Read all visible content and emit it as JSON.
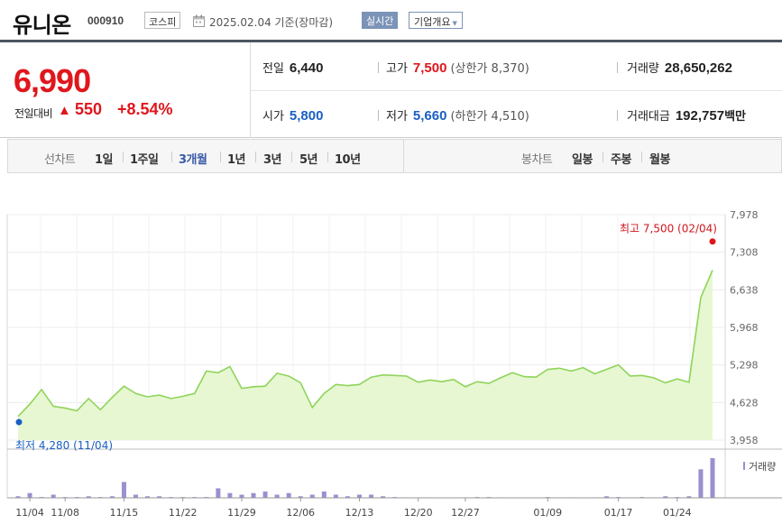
{
  "header": {
    "name": "유니온",
    "code": "000910",
    "market": "코스피",
    "date": "2025.02.04 기준(장마감)",
    "realtime_label": "실시간",
    "company_label": "기업개요"
  },
  "price": {
    "current": "6,990",
    "vs_label": "전일대비",
    "change": "550",
    "rate": "+8.54%",
    "up_color": "#e0161d",
    "down_color": "#1a5fc2"
  },
  "stats": {
    "prev_label": "전일",
    "prev_value": "6,440",
    "high_label": "고가",
    "high_value": "7,500",
    "upper_limit": "(상한가 8,370)",
    "volume_label": "거래량",
    "volume_value": "28,650,262",
    "open_label": "시가",
    "open_value": "5,800",
    "low_label": "저가",
    "low_value": "5,660",
    "lower_limit": "(하한가 4,510)",
    "amount_label": "거래대금",
    "amount_value": "192,757",
    "amount_unit": "백만"
  },
  "tabs": {
    "line_group": "선차트",
    "line_items": [
      "1일",
      "1주일",
      "3개월",
      "1년",
      "3년",
      "5년",
      "10년"
    ],
    "selected": "3개월",
    "candle_group": "봉차트",
    "candle_items": [
      "일봉",
      "주봉",
      "월봉"
    ]
  },
  "chart_data": {
    "type": "area",
    "line_color": "#8fd45a",
    "fill_color": "#e6f7d2",
    "volume_color": "#9b8fd0",
    "y_ticks": [
      "7,978",
      "7,308",
      "6,638",
      "5,968",
      "5,298",
      "4,628",
      "3,958"
    ],
    "y_tick_values": [
      7978,
      7308,
      6638,
      5968,
      5298,
      4628,
      3958
    ],
    "ylim": [
      3958,
      7978
    ],
    "x_ticks": [
      "11/04",
      "11/08",
      "11/15",
      "11/22",
      "11/29",
      "12/06",
      "12/13",
      "12/20",
      "12/27",
      "01/09",
      "01/17",
      "01/24"
    ],
    "x_tick_index": [
      1,
      4,
      9,
      14,
      19,
      24,
      29,
      34,
      38,
      45,
      51,
      56
    ],
    "high_label": "최고 7,500 (02/04)",
    "low_label": "최저 4,280 (11/04)",
    "high_index": 0,
    "low_index": 0,
    "volume_legend": "거래량",
    "values": [
      4380,
      4600,
      4860,
      4560,
      4530,
      4480,
      4700,
      4500,
      4720,
      4920,
      4790,
      4730,
      4760,
      4700,
      4740,
      4790,
      5190,
      5160,
      5270,
      4880,
      4910,
      4920,
      5150,
      5100,
      4980,
      4540,
      4790,
      4950,
      4930,
      4950,
      5080,
      5120,
      5110,
      5100,
      4990,
      5030,
      5000,
      5040,
      4910,
      5000,
      4970,
      5070,
      5160,
      5090,
      5080,
      5220,
      5240,
      5190,
      5250,
      5140,
      5220,
      5300,
      5100,
      5110,
      5070,
      4980,
      5050,
      4990,
      6500,
      6990
    ],
    "volumes": [
      1,
      3,
      0.5,
      2,
      0.5,
      0.5,
      1,
      0.5,
      1,
      10,
      2,
      1,
      1,
      0.5,
      0.5,
      0.5,
      0.5,
      6,
      3,
      2,
      3,
      4,
      2,
      3,
      1,
      2,
      4,
      2,
      1,
      2,
      2,
      1,
      0.5,
      0.3,
      0.2,
      0.3,
      0.2,
      0.2,
      0.3,
      0.5,
      0.5,
      0.3,
      0.2,
      0.2,
      0.2,
      0.5,
      0.3,
      0.3,
      0.2,
      0.3,
      1,
      0.5,
      0.3,
      0.5,
      0.3,
      1,
      0.5,
      1,
      18,
      25
    ]
  }
}
